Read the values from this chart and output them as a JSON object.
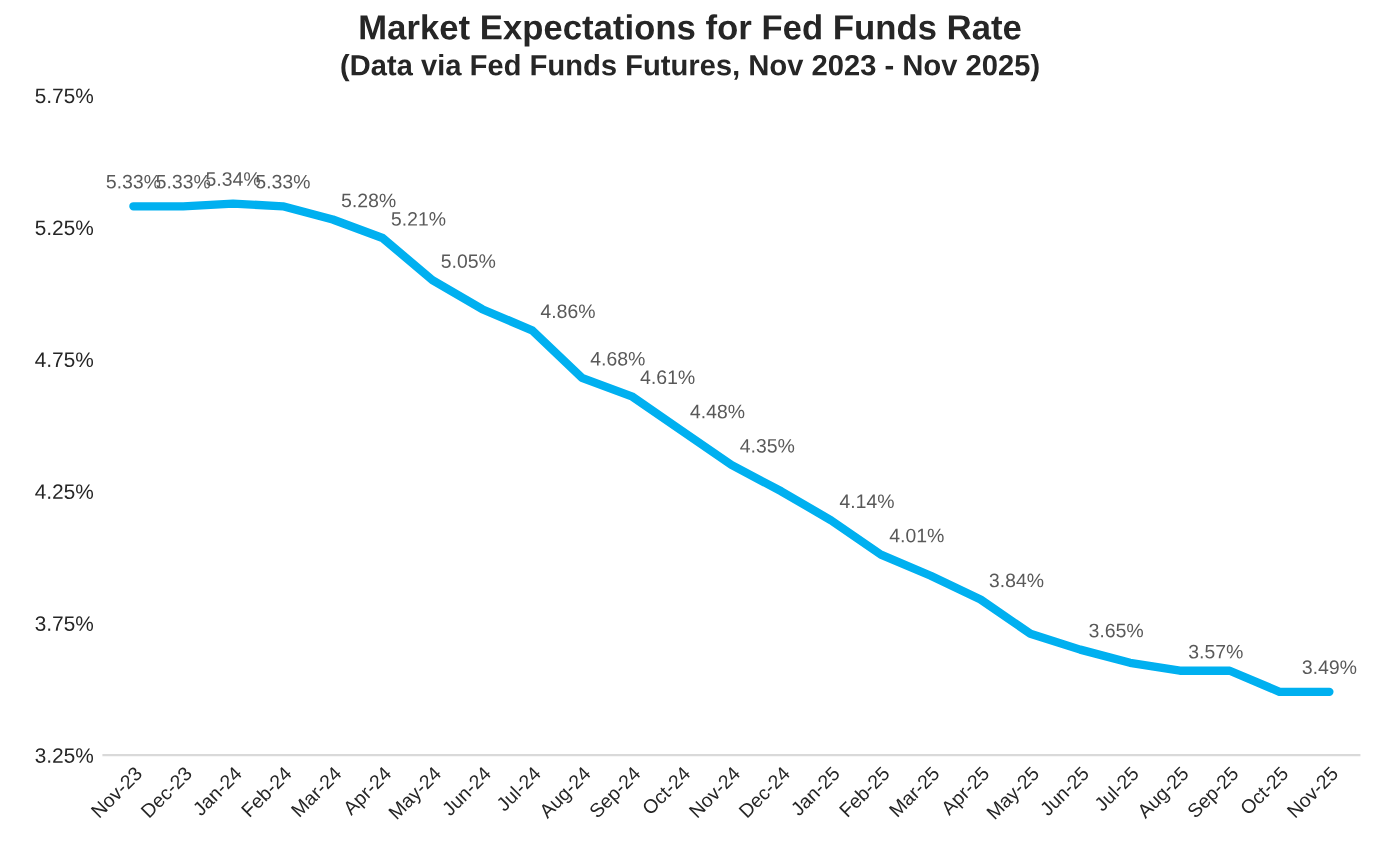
{
  "chart_data": {
    "type": "line",
    "title": "Market Expectations for Fed Funds Rate",
    "subtitle": "(Data via Fed Funds Futures, Nov 2023 - Nov 2025)",
    "categories": [
      "Nov-23",
      "Dec-23",
      "Jan-24",
      "Feb-24",
      "Mar-24",
      "Apr-24",
      "May-24",
      "Jun-24",
      "Jul-24",
      "Aug-24",
      "Sep-24",
      "Oct-24",
      "Nov-24",
      "Dec-24",
      "Jan-25",
      "Feb-25",
      "Mar-25",
      "Apr-25",
      "May-25",
      "Jun-25",
      "Jul-25",
      "Aug-25",
      "Sep-25",
      "Oct-25",
      "Nov-25"
    ],
    "series": [
      {
        "color": "#00b0f0",
        "values": [
          5.33,
          5.33,
          5.34,
          5.33,
          5.28,
          5.21,
          5.05,
          4.94,
          4.86,
          4.68,
          4.61,
          4.48,
          4.35,
          4.25,
          4.14,
          4.01,
          3.93,
          3.84,
          3.71,
          3.65,
          3.6,
          3.57,
          3.57,
          3.49,
          3.49
        ],
        "value_labels": [
          "5.33%",
          "5.33%",
          "5.34%",
          "5.33%",
          "5.28%",
          "5.21%",
          "5.05%",
          null,
          "4.86%",
          "4.68%",
          "4.61%",
          "4.48%",
          "4.35%",
          null,
          "4.14%",
          "4.01%",
          null,
          "3.84%",
          null,
          "3.65%",
          null,
          "3.57%",
          null,
          null,
          "3.49%"
        ]
      }
    ],
    "ylim": [
      3.25,
      5.75
    ],
    "yticks": [
      {
        "value": 3.25,
        "label": "3.25%"
      },
      {
        "value": 3.75,
        "label": "3.75%"
      },
      {
        "value": 4.25,
        "label": "4.25%"
      },
      {
        "value": 4.75,
        "label": "4.75%"
      },
      {
        "value": 5.25,
        "label": "5.25%"
      },
      {
        "value": 5.75,
        "label": "5.75%"
      }
    ],
    "grid": false,
    "marker": "none",
    "line_style": "solid"
  }
}
